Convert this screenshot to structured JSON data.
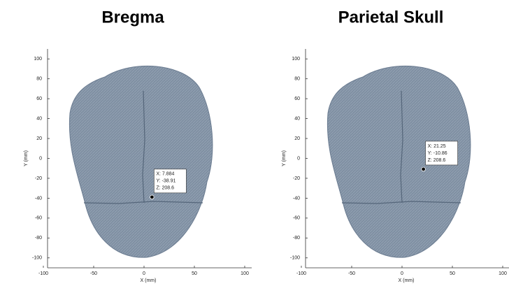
{
  "chart_data": [
    {
      "type": "scatter",
      "title": "Bregma",
      "xlabel": "X (mm)",
      "ylabel": "Y (mm)",
      "xlim": [
        -100,
        100
      ],
      "ylim": [
        -110,
        110
      ],
      "xticks": [
        -100,
        -50,
        0,
        50,
        100
      ],
      "yticks": [
        -100,
        -80,
        -60,
        -40,
        -20,
        0,
        20,
        40,
        60,
        80,
        100
      ],
      "x": [
        7.884
      ],
      "values": [
        -38.91
      ],
      "color": "#000000",
      "annotation": [
        "X: 7.884",
        "Y: -38.91",
        "Z: 208.6"
      ]
    },
    {
      "type": "scatter",
      "title": "Parietal Skull",
      "xlabel": "X (mm)",
      "ylabel": "Y (mm)",
      "xlim": [
        -100,
        100
      ],
      "ylim": [
        -110,
        110
      ],
      "xticks": [
        -100,
        -50,
        0,
        50,
        100
      ],
      "yticks": [
        -100,
        -80,
        -60,
        -40,
        -20,
        0,
        20,
        40,
        60,
        80,
        100
      ],
      "x": [
        21.25
      ],
      "values": [
        -10.86
      ],
      "color": "#000000",
      "annotation": [
        "X: 21.25",
        "Y: -10.86",
        "Z: 208.6"
      ]
    }
  ]
}
